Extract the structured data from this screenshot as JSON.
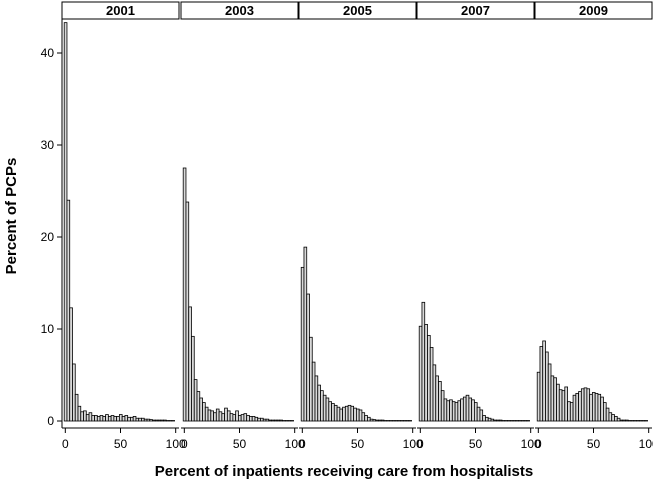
{
  "chart_data": {
    "type": "bar",
    "xlabel": "Percent of inpatients receiving care from hospitalists",
    "ylabel": "Percent of PCPs",
    "xlim": [
      -3,
      103
    ],
    "ylim": [
      0,
      43
    ],
    "x_ticks": [
      0,
      50,
      100
    ],
    "y_ticks": [
      0,
      10,
      20,
      30,
      40
    ],
    "bin_width": 2.5,
    "bin_starts": [
      -1,
      1.5,
      4,
      6.5,
      9,
      11.5,
      14,
      16.5,
      19,
      21.5,
      24,
      26.5,
      29,
      31.5,
      34,
      36.5,
      39,
      41.5,
      44,
      46.5,
      49,
      51.5,
      54,
      56.5,
      59,
      61.5,
      64,
      66.5,
      69,
      71.5,
      74,
      76.5,
      79,
      81.5,
      84,
      86.5,
      89,
      91.5,
      94,
      96.5
    ],
    "panels": [
      {
        "label": "2001",
        "values": [
          43.3,
          24.0,
          12.3,
          6.2,
          2.9,
          1.6,
          1.0,
          1.1,
          0.7,
          0.9,
          0.6,
          0.6,
          0.5,
          0.6,
          0.5,
          0.7,
          0.5,
          0.6,
          0.5,
          0.5,
          0.7,
          0.5,
          0.6,
          0.4,
          0.4,
          0.5,
          0.3,
          0.3,
          0.3,
          0.2,
          0.2,
          0.15,
          0.1,
          0.1,
          0.1,
          0.1,
          0.1,
          0.05,
          0.05,
          0.05
        ]
      },
      {
        "label": "2003",
        "values": [
          27.5,
          23.8,
          12.4,
          9.2,
          4.5,
          3.2,
          2.5,
          2.0,
          1.5,
          1.2,
          1.1,
          0.9,
          1.3,
          1.0,
          0.8,
          1.4,
          1.1,
          0.8,
          0.7,
          1.1,
          0.6,
          0.7,
          0.8,
          0.6,
          0.5,
          0.5,
          0.4,
          0.3,
          0.3,
          0.2,
          0.2,
          0.1,
          0.1,
          0.1,
          0.1,
          0.1,
          0.05,
          0.05,
          0.05,
          0.05
        ]
      },
      {
        "label": "2005",
        "values": [
          16.7,
          18.9,
          13.8,
          9.1,
          6.4,
          4.9,
          3.9,
          3.3,
          2.8,
          2.5,
          2.1,
          1.9,
          1.7,
          1.5,
          1.3,
          1.5,
          1.6,
          1.7,
          1.6,
          1.4,
          1.3,
          1.2,
          0.9,
          0.6,
          0.4,
          0.2,
          0.15,
          0.1,
          0.1,
          0.1,
          0.05,
          0.05,
          0.05,
          0.05,
          0.05,
          0.05,
          0.05,
          0.05,
          0.05,
          0.05
        ]
      },
      {
        "label": "2007",
        "values": [
          10.3,
          12.9,
          10.5,
          9.3,
          8.0,
          6.1,
          4.9,
          4.3,
          3.3,
          2.4,
          2.2,
          2.3,
          2.1,
          2.0,
          2.2,
          2.4,
          2.6,
          2.8,
          2.5,
          2.3,
          2.0,
          1.5,
          1.2,
          0.6,
          0.4,
          0.3,
          0.2,
          0.1,
          0.1,
          0.1,
          0.05,
          0.05,
          0.05,
          0.05,
          0.05,
          0.05,
          0.05,
          0.05,
          0.05,
          0.05
        ]
      },
      {
        "label": "2009",
        "values": [
          5.3,
          8.1,
          8.7,
          7.5,
          6.2,
          4.9,
          4.7,
          4.0,
          3.4,
          3.3,
          3.7,
          2.1,
          2.0,
          2.8,
          3.0,
          3.2,
          3.5,
          3.6,
          3.5,
          2.9,
          3.1,
          3.0,
          2.9,
          2.6,
          2.0,
          1.4,
          0.9,
          0.7,
          0.5,
          0.3,
          0.1,
          0.1,
          0.1,
          0.05,
          0.05,
          0.05,
          0.05,
          0.05,
          0.05,
          0.05
        ]
      }
    ],
    "colors": {
      "bar_fill": "#d9d9d9",
      "bar_stroke": "#000000",
      "strip_fill": "#ffffff",
      "axis": "#000000"
    }
  }
}
